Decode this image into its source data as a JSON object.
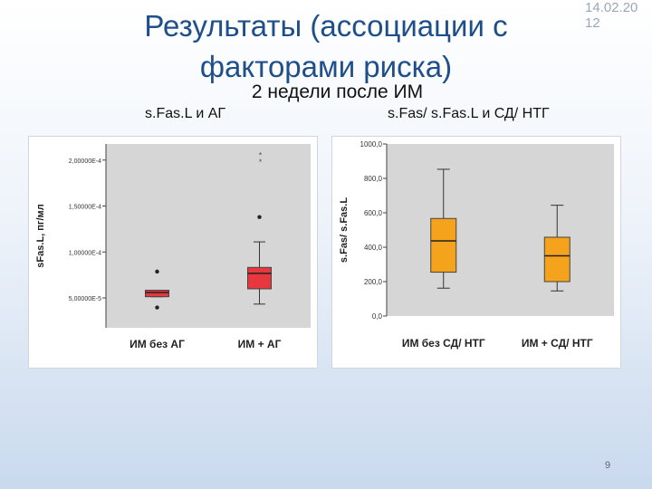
{
  "slide": {
    "title": "Результаты (ассоциации с факторами риска)",
    "date": "14.02.20\n12",
    "subtitle": "2 недели после ИМ",
    "page_number": "9",
    "left_label": "s.Fas.L и АГ",
    "right_label": "s.Fas/ s.Fas.L и СД/ НТГ"
  },
  "colors": {
    "left_box": "#e8383d",
    "right_box": "#f5a21c",
    "plot_bg": "#d6d6d6",
    "title": "#1f4e8c"
  },
  "chart_data": [
    {
      "type": "boxplot",
      "title": "",
      "ylabel": "sFas.L, пг/мл",
      "xlabel": "",
      "ylim": [
        1.75e-05,
        0.0002175
      ],
      "yticks": [
        5e-05,
        0.0001,
        0.00015,
        0.0002
      ],
      "ytick_labels": [
        "5,00000E-5",
        "1,00000E-4",
        "1,50000E-4",
        "2,00000E-4"
      ],
      "categories": [
        "ИМ без АГ",
        "ИМ + АГ"
      ],
      "boxes": [
        {
          "min": 5.13e-05,
          "q1": 5.13e-05,
          "median": 5.59e-05,
          "q3": 5.84e-05,
          "max": 5.84e-05,
          "outliers": [
            7.87e-05,
            3.96e-05
          ]
        },
        {
          "min": 4.33e-05,
          "q1": 5.99e-05,
          "median": 7.67e-05,
          "q3": 8.32e-05,
          "max": 0.000111,
          "outliers": [
            0.000138
          ],
          "extremes": [
            0.000206,
            0.000199
          ]
        }
      ],
      "grid": false
    },
    {
      "type": "boxplot",
      "title": "",
      "ylabel": "s.Fas/ s.Fas.L",
      "xlabel": "",
      "ylim": [
        0,
        1000
      ],
      "yticks": [
        0,
        200,
        400,
        600,
        800,
        1000
      ],
      "ytick_labels": [
        "0,0",
        "200,0",
        "400,0",
        "600,0",
        "800,0",
        "1000,0"
      ],
      "categories": [
        "ИМ без СД/ НТГ",
        "ИМ + СД/ НТГ"
      ],
      "boxes": [
        {
          "min": 162,
          "q1": 255,
          "median": 437,
          "q3": 567,
          "max": 853
        },
        {
          "min": 146,
          "q1": 200,
          "median": 350,
          "q3": 458,
          "max": 644
        }
      ],
      "grid": false
    }
  ]
}
